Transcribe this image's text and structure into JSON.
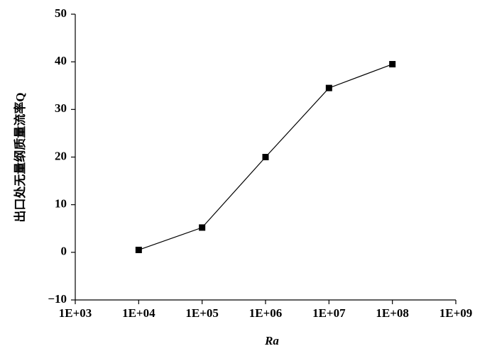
{
  "chart_data": {
    "type": "line",
    "x_label": "Ra",
    "y_label": "出口处无量纲质量流率Q",
    "x_scale": "log",
    "x": [
      10000,
      100000,
      1000000,
      10000000,
      100000000
    ],
    "series": [
      {
        "name": "Q",
        "color": "#000000",
        "values": [
          0.5,
          5.2,
          20,
          34.5,
          39.5
        ]
      }
    ],
    "xlim": [
      1000,
      1000000000
    ],
    "xticks": [
      {
        "value": 1000,
        "label": "1E+03"
      },
      {
        "value": 10000,
        "label": "1E+04"
      },
      {
        "value": 100000,
        "label": "1E+05"
      },
      {
        "value": 1000000,
        "label": "1E+06"
      },
      {
        "value": 10000000,
        "label": "1E+07"
      },
      {
        "value": 100000000,
        "label": "1E+08"
      },
      {
        "value": 1000000000,
        "label": "1E+09"
      }
    ],
    "ylim": [
      -10,
      50
    ],
    "yticks": [
      {
        "value": -10,
        "label": "−10"
      },
      0,
      10,
      20,
      30,
      40,
      50
    ],
    "grid": false
  }
}
